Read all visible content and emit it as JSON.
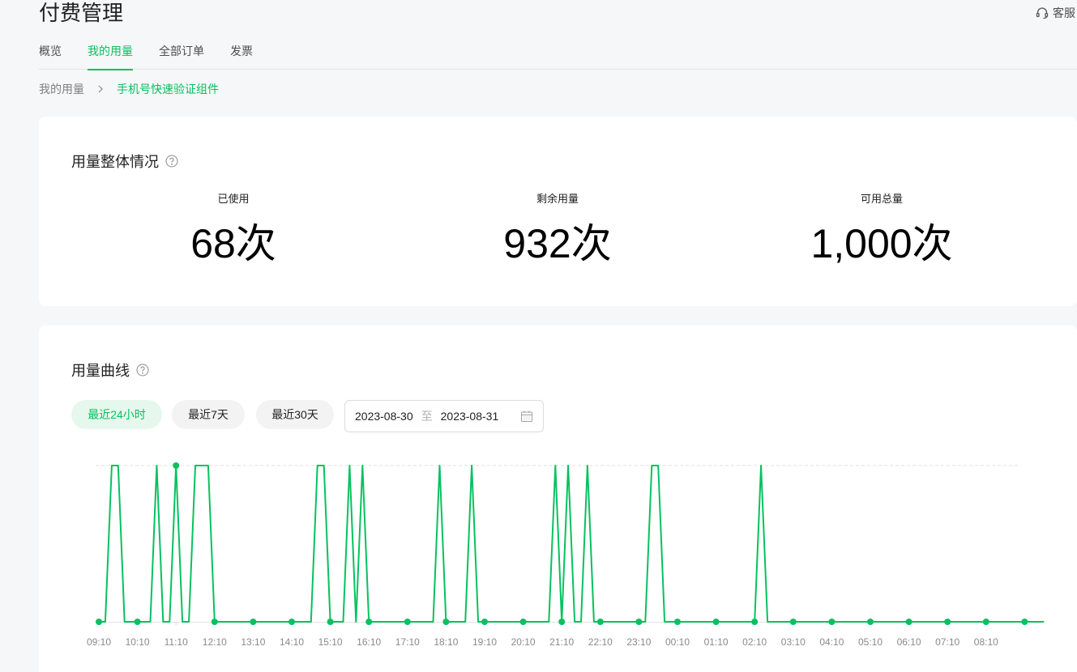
{
  "header": {
    "title": "付费管理",
    "service_label": "客服",
    "service_icon": "headset-icon"
  },
  "tabs": [
    {
      "label": "概览",
      "active": false
    },
    {
      "label": "我的用量",
      "active": true
    },
    {
      "label": "全部订单",
      "active": false
    },
    {
      "label": "发票",
      "active": false
    }
  ],
  "breadcrumb": {
    "parent": "我的用量",
    "current": "手机号快速验证组件"
  },
  "overview": {
    "title": "用量整体情况",
    "used_label": "已使用",
    "used_value": "68次",
    "remaining_label": "剩余用量",
    "remaining_value": "932次",
    "total_label": "可用总量",
    "total_value": "1,000次"
  },
  "usage_curve": {
    "title": "用量曲线",
    "range_buttons": [
      {
        "label": "最近24小时",
        "active": true
      },
      {
        "label": "最近7天",
        "active": false
      },
      {
        "label": "最近30天",
        "active": false
      }
    ],
    "date_start": "2023-08-30",
    "date_separator": "至",
    "date_end": "2023-08-31"
  },
  "colors": {
    "accent": "#07c160",
    "accent_light": "#e6f7ed"
  },
  "chart_data": {
    "type": "line",
    "x_ticks": [
      "09:10",
      "10:10",
      "11:10",
      "12:10",
      "13:10",
      "14:10",
      "15:10",
      "16:10",
      "17:10",
      "18:10",
      "19:10",
      "20:10",
      "21:10",
      "22:10",
      "23:10",
      "00:10",
      "01:10",
      "02:10",
      "03:10",
      "04:10",
      "05:10",
      "06:10",
      "07:10",
      "08:10"
    ],
    "values": [
      0,
      0,
      1,
      1,
      0,
      0,
      0,
      0,
      0,
      1,
      0,
      0,
      1,
      0,
      0,
      1,
      1,
      1,
      0,
      0,
      0,
      0,
      0,
      0,
      0,
      0,
      0,
      0,
      0,
      0,
      0,
      0,
      0,
      0,
      1,
      1,
      0,
      0,
      0,
      1,
      0,
      1,
      0,
      0,
      0,
      0,
      0,
      0,
      0,
      0,
      0,
      0,
      0,
      1,
      0,
      0,
      0,
      0,
      1,
      0,
      0,
      0,
      0,
      0,
      0,
      0,
      0,
      0,
      0,
      0,
      0,
      1,
      0,
      1,
      0,
      0,
      1,
      0,
      0,
      0,
      0,
      0,
      0,
      0,
      0,
      0,
      1,
      1,
      0,
      0,
      0,
      0,
      0,
      0,
      0,
      0,
      0,
      0,
      0,
      0,
      0,
      0,
      0,
      1,
      0,
      0,
      0,
      0,
      0,
      0,
      0,
      0,
      0,
      0,
      0,
      0,
      0,
      0,
      0,
      0,
      0,
      0,
      0,
      0,
      0,
      0,
      0,
      0,
      0,
      0,
      0,
      0,
      0,
      0,
      0,
      0,
      0,
      0,
      0,
      0,
      0,
      0,
      0,
      0,
      0,
      0,
      0,
      0
    ],
    "marker_every": 6,
    "ylim": [
      0,
      1
    ],
    "grid": true,
    "color": "#07c160"
  }
}
